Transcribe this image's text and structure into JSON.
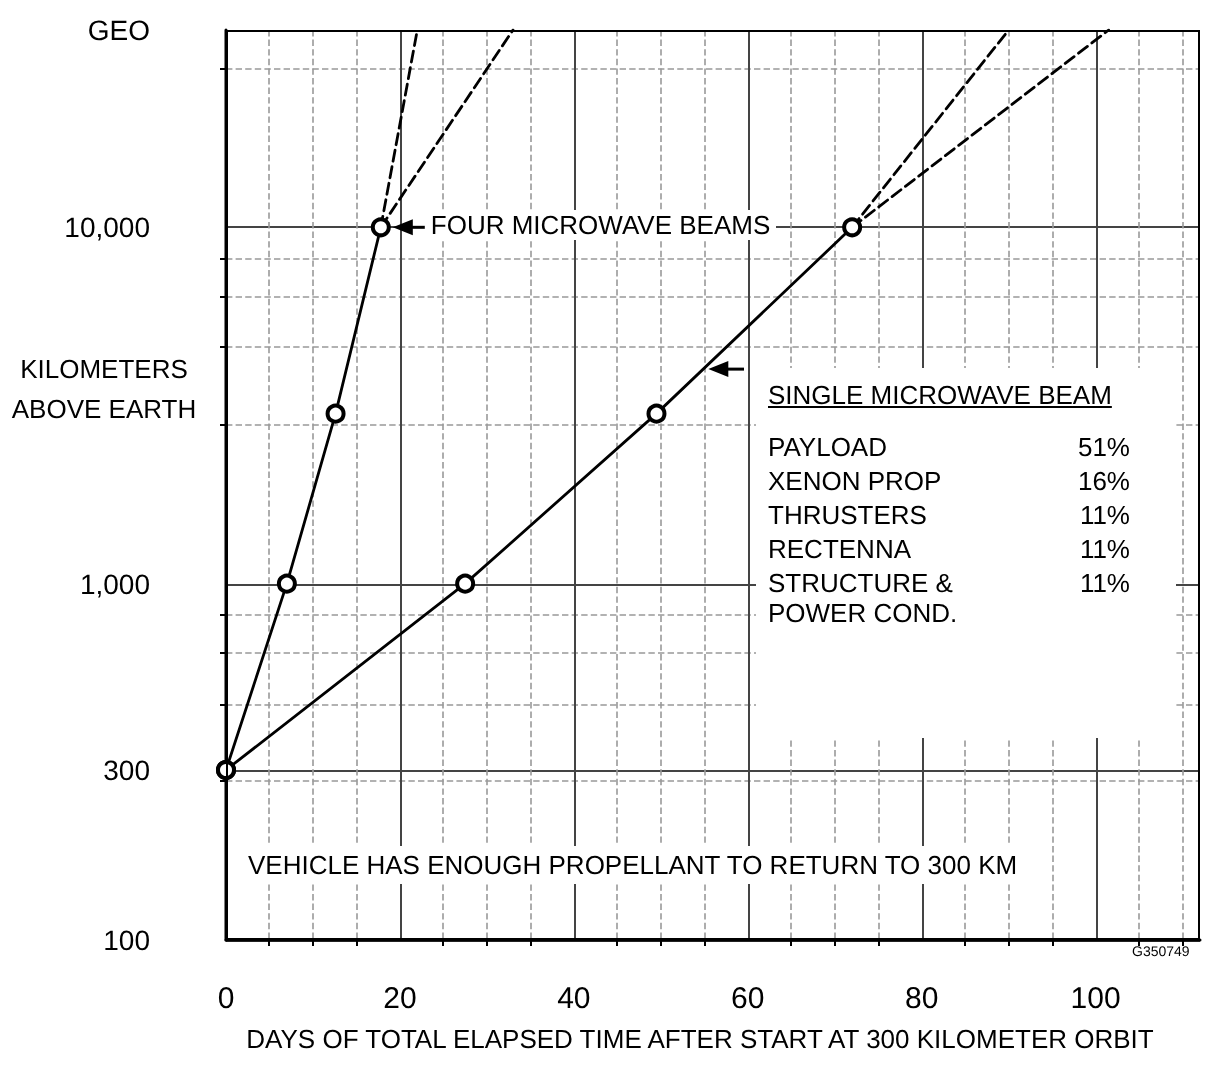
{
  "chart_data": {
    "type": "line",
    "xlabel": "DAYS OF TOTAL ELAPSED TIME AFTER START AT 300 KILOMETER ORBIT",
    "ylabel": "KILOMETERS ABOVE EARTH",
    "series": [
      {
        "color": "#000000",
        "x": [
          0,
          7,
          12.6,
          17.8
        ],
        "values": [
          300,
          1000,
          3000,
          10000
        ],
        "marker": "circle",
        "line_style": "solid"
      },
      {
        "color": "#000000",
        "x": [
          17.8,
          22
        ],
        "values": [
          10000,
          35786
        ],
        "marker": "none",
        "line_style": "dashed"
      },
      {
        "color": "#000000",
        "x": [
          17.8,
          33
        ],
        "values": [
          10000,
          35786
        ],
        "marker": "none",
        "line_style": "dashed"
      },
      {
        "color": "#000000",
        "x": [
          0,
          27.5,
          49.5,
          72
        ],
        "values": [
          300,
          1000,
          3000,
          10000
        ],
        "marker": "circle",
        "line_style": "solid"
      },
      {
        "color": "#000000",
        "x": [
          72,
          90
        ],
        "values": [
          10000,
          35786
        ],
        "marker": "none",
        "line_style": "dashed"
      },
      {
        "color": "#000000",
        "x": [
          72,
          101.5
        ],
        "values": [
          10000,
          35786
        ],
        "marker": "none",
        "line_style": "dashed"
      }
    ],
    "xlim": [
      0,
      112
    ],
    "xticks": [
      0,
      20,
      40,
      60,
      80,
      100
    ],
    "ylim": [
      100,
      35786
    ],
    "yticks": [
      100,
      300,
      {
        "value": 1000,
        "label": "1,000"
      },
      {
        "value": 10000,
        "label": "10,000"
      },
      {
        "value": 35786,
        "label": "GEO"
      }
    ],
    "log": "y",
    "grid": true,
    "annotations": [
      {
        "text": "FOUR MICROWAVE BEAMS",
        "x": 17.8,
        "y": 10000
      },
      {
        "text": "SINGLE MICROWAVE BEAM",
        "x": 55,
        "y": 4000
      },
      "VEHICLE HAS ENOUGH PROPELLANT TO RETURN TO 300 KM",
      "G350749",
      "PAYLOAD",
      "51%",
      "XENON PROP",
      "16%",
      "THRUSTERS",
      "11%",
      "RECTENNA",
      "11%",
      "STRUCTURE & POWER COND.",
      "11%"
    ]
  }
}
